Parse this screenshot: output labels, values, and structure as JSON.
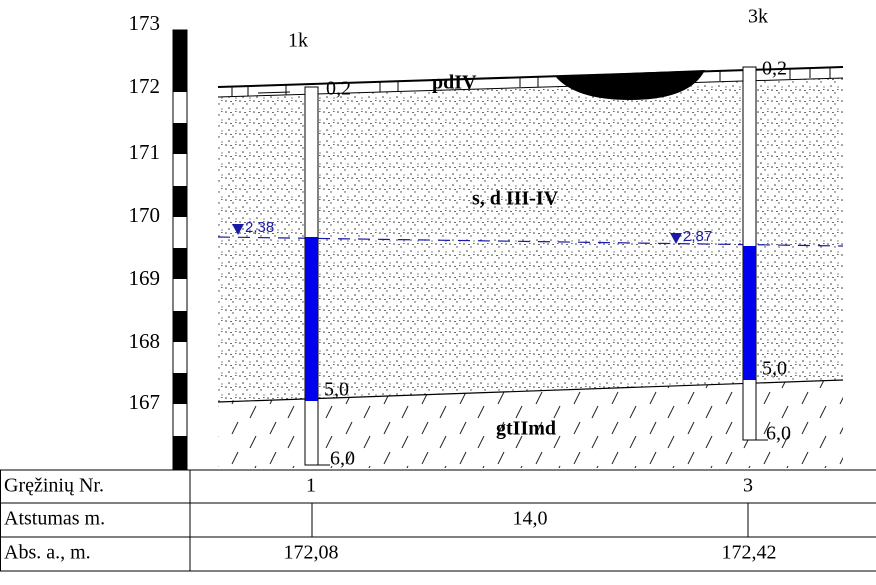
{
  "scale_labels": [
    "173",
    "172",
    "171",
    "170",
    "169",
    "168",
    "167"
  ],
  "boreholes": [
    {
      "label": "1k",
      "top_depth": "0,2",
      "water_depth": "2,38",
      "sand_depth": "5,0",
      "bottom_depth": "6,0"
    },
    {
      "label": "3k",
      "top_depth": "0,2",
      "water_depth": "2,87",
      "sand_depth": "5,0",
      "bottom_depth": "6,0"
    }
  ],
  "layers": {
    "top": "pdIV",
    "middle": "s, d III-IV",
    "bottom": "gtIImd"
  },
  "table": {
    "rows": [
      [
        "Gręžinių Nr.",
        "1",
        "3"
      ],
      [
        "Atstumas m.",
        "14,0"
      ],
      [
        "Abs. a., m.",
        "172,08",
        "172,42"
      ]
    ]
  }
}
